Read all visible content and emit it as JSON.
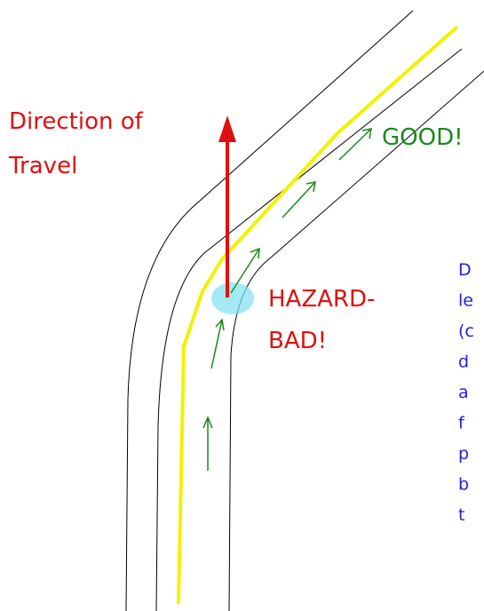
{
  "direction_label": {
    "line1": "Direction of",
    "line2": "Travel"
  },
  "good_label": "GOOD!",
  "hazard_label": {
    "line1": "HAZARD-",
    "line2": "BAD!"
  },
  "side_note_lines": [
    "D",
    "le",
    "(c",
    "d",
    "a",
    "f",
    "p",
    "b",
    "t"
  ]
}
